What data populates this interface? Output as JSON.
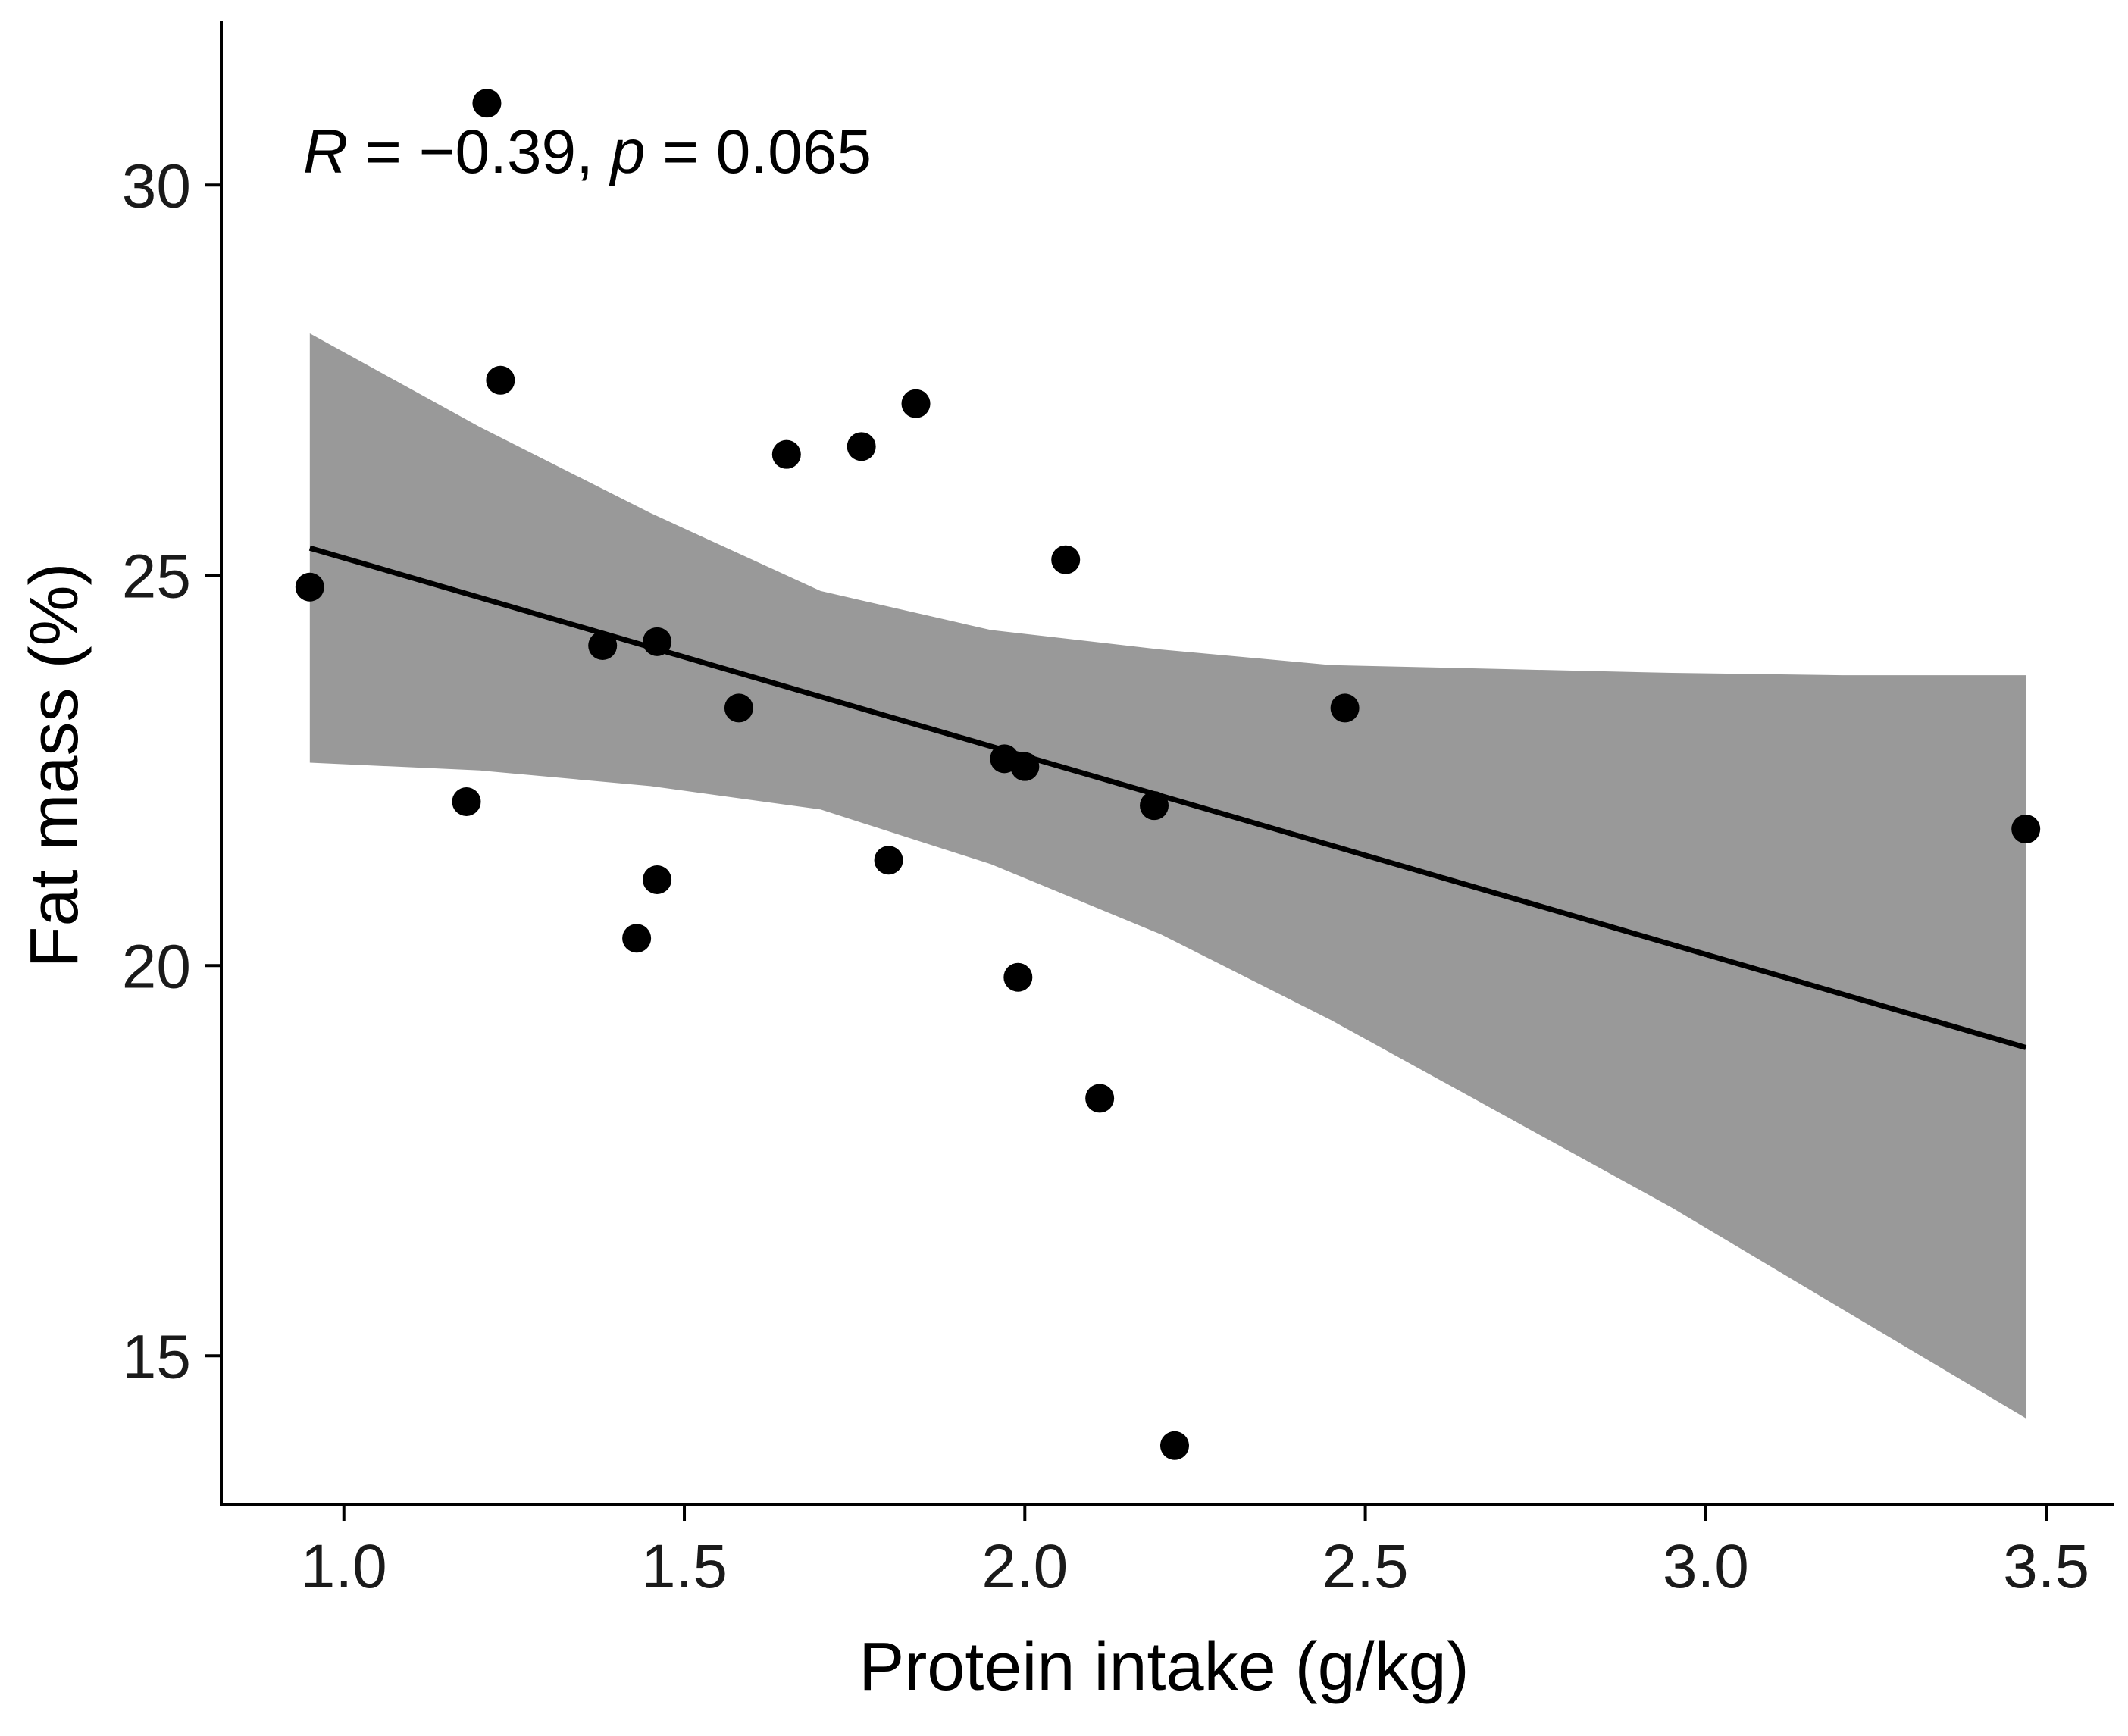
{
  "chart_data": {
    "type": "scatter",
    "xlabel": "Protein intake (g/kg)",
    "ylabel": "Fat mass (%)",
    "xlim": [
      0.82,
      3.6
    ],
    "ylim": [
      13.1,
      32.1
    ],
    "xticks": [
      1.0,
      1.5,
      2.0,
      2.5,
      3.0,
      3.5
    ],
    "xtick_labels": [
      "1.0",
      "1.5",
      "2.0",
      "2.5",
      "3.0",
      "3.5"
    ],
    "yticks": [
      15,
      20,
      25,
      30
    ],
    "ytick_labels": [
      "15",
      "20",
      "25",
      "30"
    ],
    "annotation": {
      "r_symbol": "R",
      "r_text": " = −0.39, ",
      "p_symbol": "p",
      "p_text": " = 0.065"
    },
    "points": [
      {
        "x": 0.95,
        "y": 24.85
      },
      {
        "x": 1.18,
        "y": 22.1
      },
      {
        "x": 1.21,
        "y": 31.05
      },
      {
        "x": 1.23,
        "y": 27.5
      },
      {
        "x": 1.38,
        "y": 24.1
      },
      {
        "x": 1.43,
        "y": 20.35
      },
      {
        "x": 1.46,
        "y": 24.15
      },
      {
        "x": 1.46,
        "y": 21.1
      },
      {
        "x": 1.58,
        "y": 23.3
      },
      {
        "x": 1.65,
        "y": 26.55
      },
      {
        "x": 1.76,
        "y": 26.65
      },
      {
        "x": 1.8,
        "y": 21.35
      },
      {
        "x": 1.84,
        "y": 27.2
      },
      {
        "x": 1.97,
        "y": 22.65
      },
      {
        "x": 1.99,
        "y": 19.85
      },
      {
        "x": 2.0,
        "y": 22.55
      },
      {
        "x": 2.06,
        "y": 25.2
      },
      {
        "x": 2.11,
        "y": 18.3
      },
      {
        "x": 2.19,
        "y": 22.05
      },
      {
        "x": 2.22,
        "y": 13.85
      },
      {
        "x": 2.47,
        "y": 23.3
      },
      {
        "x": 3.47,
        "y": 21.75
      }
    ],
    "fit_line": {
      "x": [
        0.95,
        3.47
      ],
      "y": [
        25.35,
        18.95
      ]
    },
    "confidence_band": {
      "x": [
        0.95,
        1.2,
        1.45,
        1.7,
        1.95,
        2.2,
        2.45,
        2.7,
        2.95,
        3.2,
        3.47
      ],
      "lower": [
        22.6,
        22.5,
        22.3,
        22.0,
        21.3,
        20.4,
        19.3,
        18.1,
        16.9,
        15.6,
        14.2
      ],
      "upper": [
        28.1,
        26.9,
        25.8,
        24.8,
        24.3,
        24.05,
        23.85,
        23.8,
        23.75,
        23.72,
        23.72
      ]
    },
    "colors": {
      "band": "#999999",
      "line": "#000000",
      "points": "#000000",
      "axis": "#000000"
    },
    "grid": false,
    "legend": "none"
  }
}
